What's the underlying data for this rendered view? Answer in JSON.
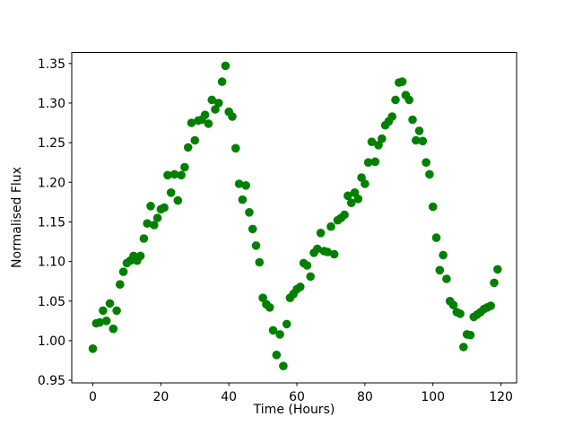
{
  "chart_data": {
    "type": "scatter",
    "title": "",
    "xlabel": "Time (Hours)",
    "ylabel": "Normalised Flux",
    "marker_color": "#008000",
    "background_color": "#ffffff",
    "spine_color": "#000000",
    "legend": "none",
    "grid": false,
    "xlim": [
      -6.2,
      124.6
    ],
    "ylim": [
      0.9467,
      1.3639
    ],
    "x_ticks": [
      0,
      20,
      40,
      60,
      80,
      100,
      120
    ],
    "x_tick_labels": [
      "0",
      "20",
      "40",
      "60",
      "80",
      "100",
      "120"
    ],
    "y_ticks": [
      0.95,
      1.0,
      1.05,
      1.1,
      1.15,
      1.2,
      1.25,
      1.3,
      1.35
    ],
    "y_tick_labels": [
      "0.95",
      "1.00",
      "1.05",
      "1.10",
      "1.15",
      "1.20",
      "1.25",
      "1.30",
      "1.35"
    ],
    "x": [
      0,
      1,
      2,
      3,
      4,
      5,
      6,
      7,
      8,
      9,
      10,
      11,
      12,
      13,
      14,
      15,
      16,
      17,
      18,
      19,
      20,
      21,
      22,
      23,
      24,
      25,
      26,
      27,
      28,
      29,
      30,
      31,
      32,
      33,
      34,
      35,
      36,
      37,
      38,
      39,
      40,
      41,
      42,
      43,
      44,
      45,
      46,
      47,
      48,
      49,
      50,
      51,
      52,
      53,
      54,
      55,
      56,
      57,
      58,
      59,
      60,
      61,
      62,
      63,
      64,
      65,
      66,
      67,
      68,
      69,
      70,
      71,
      72,
      73,
      74,
      75,
      76,
      77,
      78,
      79,
      80,
      81,
      82,
      83,
      84,
      85,
      86,
      87,
      88,
      89,
      90,
      91,
      92,
      93,
      94,
      95,
      96,
      97,
      98,
      99,
      100,
      101,
      102,
      103,
      104,
      105,
      106,
      107,
      108,
      109,
      110,
      111,
      112,
      113,
      114,
      115,
      116,
      117,
      118,
      119
    ],
    "y": [
      0.99,
      1.022,
      1.023,
      1.038,
      1.025,
      1.047,
      1.015,
      1.038,
      1.071,
      1.087,
      1.098,
      1.101,
      1.107,
      1.101,
      1.107,
      1.129,
      1.148,
      1.17,
      1.146,
      1.155,
      1.166,
      1.168,
      1.209,
      1.187,
      1.21,
      1.177,
      1.209,
      1.219,
      1.244,
      1.275,
      1.253,
      1.278,
      1.279,
      1.285,
      1.274,
      1.304,
      1.292,
      1.3,
      1.327,
      1.347,
      1.289,
      1.283,
      1.243,
      1.198,
      1.178,
      1.196,
      1.162,
      1.141,
      1.12,
      1.099,
      1.054,
      1.046,
      1.042,
      1.013,
      0.982,
      1.008,
      0.968,
      1.021,
      1.054,
      1.059,
      1.065,
      1.068,
      1.098,
      1.095,
      1.081,
      1.111,
      1.116,
      1.136,
      1.113,
      1.112,
      1.144,
      1.109,
      1.152,
      1.155,
      1.159,
      1.183,
      1.174,
      1.187,
      1.179,
      1.206,
      1.198,
      1.225,
      1.251,
      1.226,
      1.247,
      1.255,
      1.272,
      1.277,
      1.283,
      1.304,
      1.326,
      1.327,
      1.31,
      1.304,
      1.279,
      1.253,
      1.265,
      1.252,
      1.225,
      1.21,
      1.169,
      1.13,
      1.089,
      1.108,
      1.078,
      1.05,
      1.045,
      1.036,
      1.034,
      0.992,
      1.008,
      1.007,
      1.03,
      1.033,
      1.036,
      1.04,
      1.042,
      1.044,
      1.073,
      1.09
    ]
  }
}
